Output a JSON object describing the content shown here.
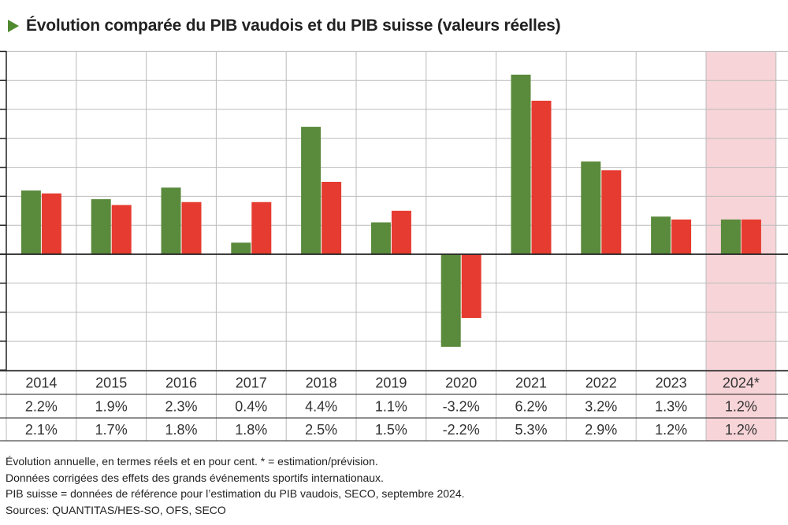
{
  "title": "Évolution comparée du PIB vaudois et du PIB suisse (valeurs réelles)",
  "colors": {
    "vaud": "#5a8a3c",
    "suisse": "#e63b30",
    "highlight": "#f7d4d8",
    "grid": "#bbbbbb",
    "title_arrow": "#4f8a2e"
  },
  "chart_data": {
    "type": "bar",
    "categories": [
      "2014",
      "2015",
      "2016",
      "2017",
      "2018",
      "2019",
      "2020",
      "2021",
      "2022",
      "2023",
      "2024*"
    ],
    "series": [
      {
        "values": [
          2.2,
          1.9,
          2.3,
          0.4,
          4.4,
          1.1,
          -3.2,
          6.2,
          3.2,
          1.3,
          1.2
        ]
      },
      {
        "values": [
          2.1,
          1.7,
          1.8,
          1.8,
          2.5,
          1.5,
          -2.2,
          5.3,
          2.9,
          1.2,
          1.2
        ]
      }
    ],
    "table_rows": [
      [
        "2.2%",
        "1.9%",
        "2.3%",
        "0.4%",
        "4.4%",
        "1.1%",
        "-3.2%",
        "6.2%",
        "3.2%",
        "1.3%",
        "1.2%"
      ],
      [
        "2.1%",
        "1.7%",
        "1.8%",
        "1.8%",
        "2.5%",
        "1.5%",
        "-2.2%",
        "5.3%",
        "2.9%",
        "1.2%",
        "1.2%"
      ]
    ],
    "ylim": [
      -4,
      7
    ],
    "grid": true,
    "highlighted_category": "2024*"
  },
  "notes": [
    "Évolution annuelle, en termes réels et en pour cent. * = estimation/prévision.",
    "Données corrigées des effets des grands événements sportifs internationaux.",
    "PIB suisse = données de référence pour l’estimation du PIB vaudois, SECO, septembre 2024.",
    "Sources: QUANTITAS/HES-SO, OFS, SECO"
  ]
}
